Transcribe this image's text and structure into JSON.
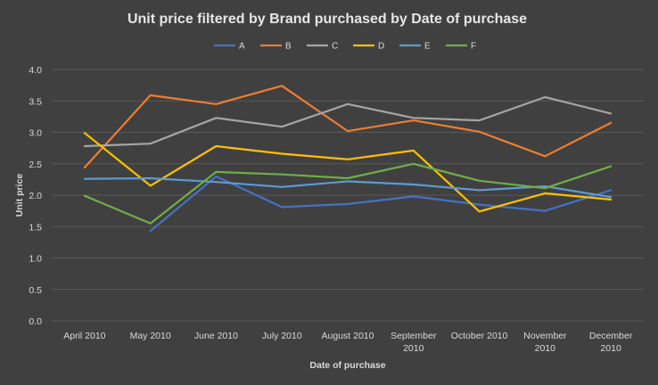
{
  "chart_data": {
    "type": "line",
    "title": "Unit price filtered by Brand purchased by Date of purchase",
    "xlabel": "Date of purchase",
    "ylabel": "Unit price",
    "ylim": [
      0,
      4.0
    ],
    "yticks": [
      "0.0",
      "0.5",
      "1.0",
      "1.5",
      "2.0",
      "2.5",
      "3.0",
      "3.5",
      "4.0"
    ],
    "grid": true,
    "legend_position": "top",
    "categories": [
      [
        "April 2010"
      ],
      [
        "May 2010"
      ],
      [
        "June 2010"
      ],
      [
        "July 2010"
      ],
      [
        "August 2010"
      ],
      [
        "September",
        "2010"
      ],
      [
        "October 2010"
      ],
      [
        "November",
        "2010"
      ],
      [
        "December",
        "2010"
      ]
    ],
    "series": [
      {
        "name": "A",
        "color": "#4472c4",
        "values": [
          null,
          1.43,
          2.3,
          1.81,
          1.86,
          1.98,
          1.85,
          1.75,
          2.08
        ]
      },
      {
        "name": "B",
        "color": "#ed7d31",
        "values": [
          2.44,
          3.59,
          3.45,
          3.74,
          3.02,
          3.19,
          3.01,
          2.62,
          3.15
        ]
      },
      {
        "name": "C",
        "color": "#a5a5a5",
        "values": [
          2.78,
          2.82,
          3.23,
          3.09,
          3.45,
          3.23,
          3.19,
          3.56,
          3.3
        ]
      },
      {
        "name": "D",
        "color": "#ffc000",
        "values": [
          2.99,
          2.15,
          2.78,
          2.66,
          2.57,
          2.71,
          1.74,
          2.03,
          1.93
        ]
      },
      {
        "name": "E",
        "color": "#5b9bd5",
        "values": [
          2.26,
          2.27,
          2.21,
          2.13,
          2.22,
          2.17,
          2.08,
          2.14,
          1.97
        ]
      },
      {
        "name": "F",
        "color": "#70ad47",
        "values": [
          1.99,
          1.55,
          2.37,
          2.33,
          2.27,
          2.5,
          2.23,
          2.11,
          2.46
        ]
      }
    ]
  }
}
